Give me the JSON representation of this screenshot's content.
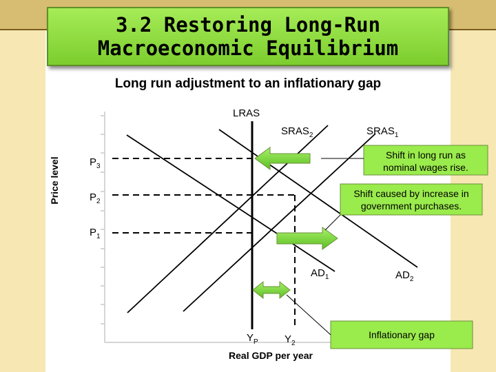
{
  "slide": {
    "title_line1": "3.2 Restoring Long-Run",
    "title_line2": "Macroeconomic Equilibrium"
  },
  "diagram": {
    "heading": "Long run adjustment to an inflationary gap",
    "y_axis_label": "Price level",
    "x_axis_label": "Real GDP per year",
    "curves": {
      "lras": "LRAS",
      "sras2": {
        "base": "SRAS",
        "sub": "2"
      },
      "sras1": {
        "base": "SRAS",
        "sub": "1"
      },
      "ad1": {
        "base": "AD",
        "sub": "1"
      },
      "ad2": {
        "base": "AD",
        "sub": "2"
      }
    },
    "price_levels": {
      "p3": {
        "base": "P",
        "sub": "3"
      },
      "p2": {
        "base": "P",
        "sub": "2"
      },
      "p1": {
        "base": "P",
        "sub": "1"
      }
    },
    "output_levels": {
      "yp": {
        "base": "Y",
        "sub": "P"
      },
      "y2": {
        "base": "Y",
        "sub": "2"
      }
    },
    "callouts": {
      "wages_line1": "Shift in long run as",
      "wages_line2": "nominal wages rise.",
      "govt_line1": "Shift caused by increase in",
      "govt_line2": "government purchases.",
      "gap": "Inflationary gap"
    },
    "colors": {
      "callout_fill": "#9aeb4c",
      "arrow_fill": "#7fdc3c",
      "curve": "#000000"
    }
  }
}
